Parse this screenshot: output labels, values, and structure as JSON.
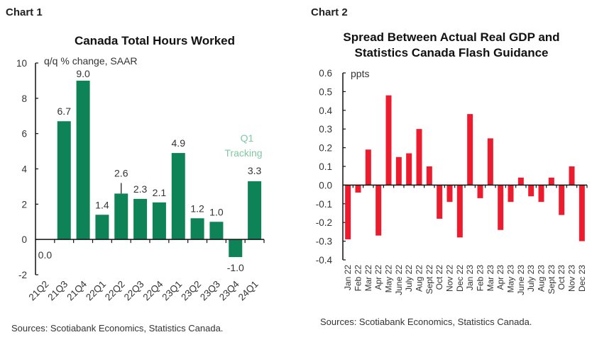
{
  "charts_header": [
    "Chart 1",
    "Chart 2"
  ],
  "colors": {
    "chart1_bar": "#0e8358",
    "chart1_annotation": "#7fc9a3",
    "chart2_bar": "#ec1c2e"
  },
  "chart_data": [
    {
      "type": "bar",
      "title": "Canada Total Hours Worked",
      "ylabel": "q/q % change, SAAR",
      "ylim": [
        -2,
        10
      ],
      "yticks": [
        -2,
        0,
        2,
        4,
        6,
        8,
        10
      ],
      "categories": [
        "21Q2",
        "21Q3",
        "21Q4",
        "22Q1",
        "22Q2",
        "22Q3",
        "22Q4",
        "23Q1",
        "23Q2",
        "23Q3",
        "23Q4",
        "24Q1"
      ],
      "values": [
        0.0,
        6.7,
        9.0,
        1.4,
        2.6,
        2.3,
        2.1,
        4.9,
        1.2,
        1.0,
        -1.0,
        3.3
      ],
      "data_labels": [
        "0.0",
        "6.7",
        "9.0",
        "1.4",
        "2.6",
        "2.3",
        "2.1",
        "4.9",
        "1.2",
        "1.0",
        "-1.0",
        "3.3"
      ],
      "annotation": [
        "Q1",
        "Tracking"
      ],
      "source": "Sources: Scotiabank Economics, Statistics Canada."
    },
    {
      "type": "bar",
      "title": [
        "Spread Between Actual Real GDP and",
        "Statistics Canada Flash Guidance"
      ],
      "ylabel": "ppts",
      "ylim": [
        -0.4,
        0.6
      ],
      "yticks": [
        "-0.4",
        "-0.3",
        "-0.2",
        "-0.1",
        "0.0",
        "0.1",
        "0.2",
        "0.3",
        "0.4",
        "0.5",
        "0.6"
      ],
      "categories": [
        "Jan 22",
        "Feb 22",
        "Mar 22",
        "Apr 22",
        "May 22",
        "June 22",
        "July 22",
        "Aug 22",
        "Sept 22",
        "Oct 22",
        "Nov 22",
        "Dec 22",
        "Jan 23",
        "Feb 23",
        "Mar 23",
        "Apr 23",
        "May 23",
        "June 23",
        "July 23",
        "Aug 23",
        "Sept 23",
        "Oct 23",
        "Nov 23",
        "Dec 23"
      ],
      "values": [
        -0.29,
        -0.04,
        0.19,
        -0.27,
        0.48,
        0.15,
        0.17,
        0.3,
        0.1,
        -0.18,
        -0.09,
        -0.28,
        0.38,
        -0.07,
        0.25,
        -0.24,
        -0.09,
        0.04,
        -0.06,
        -0.09,
        0.04,
        -0.16,
        0.1,
        -0.3
      ],
      "source": "Sources: Scotiabank Economics, Statistics Canada."
    }
  ]
}
